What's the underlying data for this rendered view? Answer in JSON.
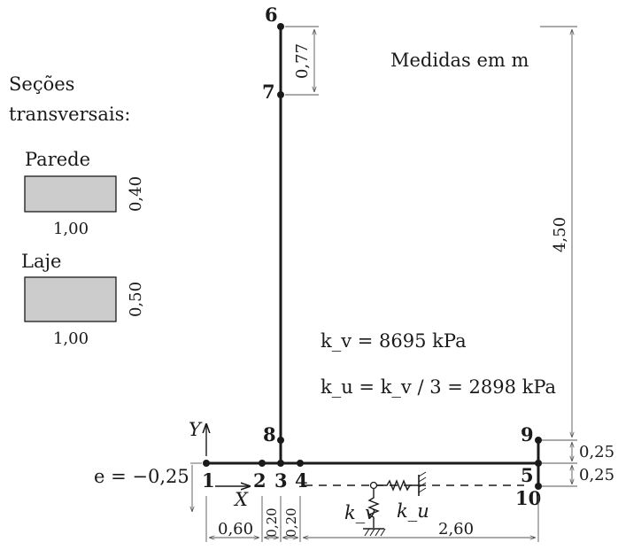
{
  "notes": {
    "units": "Medidas em m",
    "sections_title_1": "Seções",
    "sections_title_2": "transversais:"
  },
  "sections": [
    {
      "name": "Parede",
      "width": "1,00",
      "height": "0,40"
    },
    {
      "name": "Laje",
      "width": "1,00",
      "height": "0,50"
    }
  ],
  "nodes": [
    "1",
    "2",
    "3",
    "4",
    "5",
    "6",
    "7",
    "8",
    "9",
    "10"
  ],
  "dimensions": {
    "d67": "0,77",
    "d_total_height": "4,50",
    "d_9_5": "0,25",
    "d_5_10": "0,25",
    "d_1_2": "0,60",
    "d_2_3": "0,20",
    "d_3_4": "0,20",
    "d_right": "2,60"
  },
  "axes": {
    "x": "X",
    "y": "Y"
  },
  "eccentricity": "e = −0,25",
  "formulas": {
    "kv_line": "k_v = 8695 kPa",
    "ku_line": "k_u = k_v / 3 = 2898 kPa"
  },
  "springs": {
    "vertical": "k_v",
    "horizontal": "k_u"
  }
}
